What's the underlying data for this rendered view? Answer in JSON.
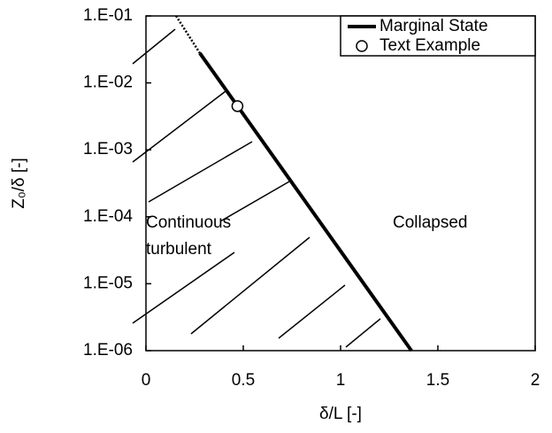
{
  "chart_data": {
    "type": "line",
    "xlabel": "δ/L [-]",
    "ylabel": "Z₀/δ [-]",
    "xlim": [
      0,
      2
    ],
    "xticks": [
      0,
      0.5,
      1,
      1.5,
      2
    ],
    "ylim": [
      1e-06,
      0.1
    ],
    "log_y": true,
    "yticks": [
      {
        "value": 0.1,
        "label": "1.E-01"
      },
      {
        "value": 0.01,
        "label": "1.E-02"
      },
      {
        "value": 0.001,
        "label": "1.E-03"
      },
      {
        "value": 0.0001,
        "label": "1.E-04"
      },
      {
        "value": 1e-05,
        "label": "1.E-05"
      },
      {
        "value": 1e-06,
        "label": "1.E-06"
      }
    ],
    "legend": "upper right",
    "annotations": [
      "Continuous",
      "turbulent",
      "Collapsed"
    ],
    "series": [
      {
        "name": "Marginal State",
        "type": "line",
        "color": "#000000",
        "x": [
          0.155,
          0.277,
          1.364
        ],
        "values": [
          0.1,
          0.0278,
          1e-06
        ],
        "segment_styles": [
          "dotted",
          "solid"
        ]
      },
      {
        "name": "Text Example",
        "type": "scatter",
        "color": "#000000",
        "x": [
          0.47
        ],
        "values": [
          0.0045
        ]
      }
    ]
  }
}
